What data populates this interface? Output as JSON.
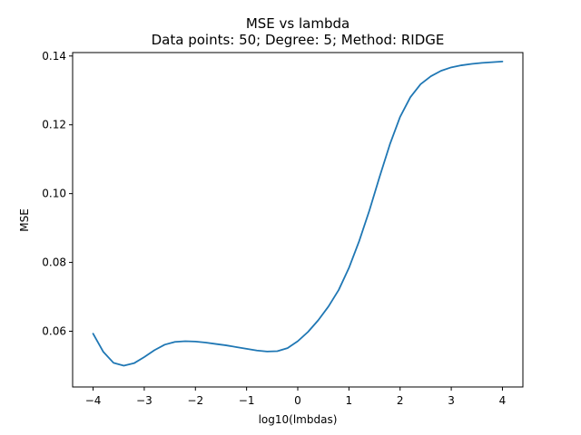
{
  "chart_data": {
    "type": "line",
    "title": "MSE vs lambda",
    "subtitle": "Data points: 50; Degree: 5; Method: RIDGE",
    "xlabel": "log10(lmbdas)",
    "ylabel": "MSE",
    "xlim": [
      -4.4,
      4.4
    ],
    "ylim": [
      0.0438,
      0.141
    ],
    "grid": false,
    "xticks": [
      -4,
      -3,
      -2,
      -1,
      0,
      1,
      2,
      3,
      4
    ],
    "xtick_labels": [
      "−4",
      "−3",
      "−2",
      "−1",
      "0",
      "1",
      "2",
      "3",
      "4"
    ],
    "yticks": [
      0.06,
      0.08,
      0.1,
      0.12,
      0.14
    ],
    "ytick_labels": [
      "0.06",
      "0.08",
      "0.10",
      "0.12",
      "0.14"
    ],
    "series": [
      {
        "color": "#1f77b4",
        "x": [
          -4.0,
          -3.8,
          -3.6,
          -3.4,
          -3.2,
          -3.0,
          -2.8,
          -2.6,
          -2.4,
          -2.2,
          -2.0,
          -1.8,
          -1.6,
          -1.4,
          -1.2,
          -1.0,
          -0.8,
          -0.6,
          -0.4,
          -0.2,
          0.0,
          0.2,
          0.4,
          0.6,
          0.8,
          1.0,
          1.2,
          1.4,
          1.6,
          1.8,
          2.0,
          2.2,
          2.4,
          2.6,
          2.8,
          3.0,
          3.2,
          3.4,
          3.6,
          3.8,
          4.0
        ],
        "y": [
          0.0593,
          0.054,
          0.0508,
          0.05,
          0.0507,
          0.0525,
          0.0545,
          0.0561,
          0.0569,
          0.0571,
          0.057,
          0.0567,
          0.0563,
          0.0559,
          0.0554,
          0.0549,
          0.0544,
          0.0541,
          0.0542,
          0.0551,
          0.0571,
          0.0598,
          0.0632,
          0.0672,
          0.072,
          0.0784,
          0.0862,
          0.0951,
          0.1049,
          0.1143,
          0.1223,
          0.128,
          0.1318,
          0.1341,
          0.1357,
          0.1367,
          0.1373,
          0.1377,
          0.138,
          0.1382,
          0.1384
        ]
      }
    ]
  }
}
